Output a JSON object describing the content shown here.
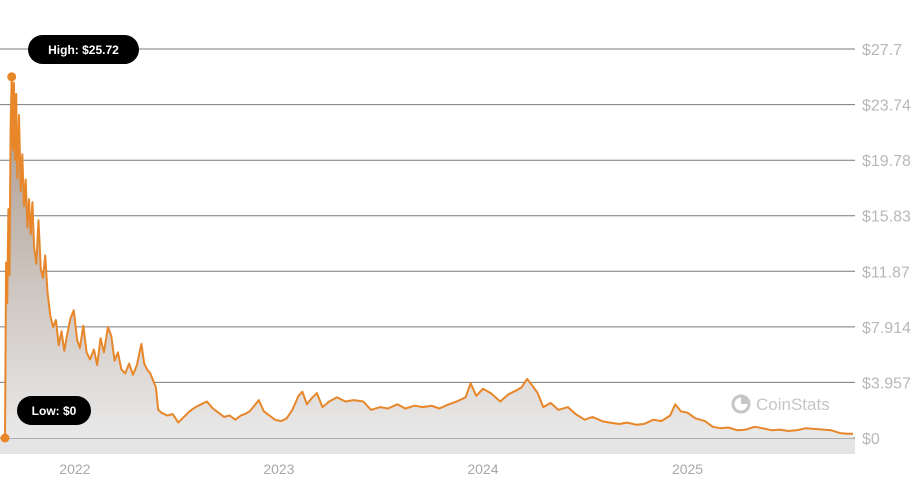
{
  "chart_data": {
    "type": "area",
    "title": "",
    "xlabel": "",
    "ylabel": "",
    "ylim": [
      0,
      27.7
    ],
    "xlim": [
      "2021-08-29",
      "2025-10-24"
    ],
    "grid": true,
    "y_ticks": [
      {
        "value": 27.7,
        "label": "$27.7"
      },
      {
        "value": 23.74,
        "label": "$23.74"
      },
      {
        "value": 19.78,
        "label": "$19.78"
      },
      {
        "value": 15.83,
        "label": "$15.83"
      },
      {
        "value": 11.87,
        "label": "$11.87"
      },
      {
        "value": 7.914,
        "label": "$7.914"
      },
      {
        "value": 3.957,
        "label": "$3.957"
      },
      {
        "value": 0,
        "label": "$0"
      }
    ],
    "x_ticks": [
      {
        "date": "2022-01-01",
        "label": "2022"
      },
      {
        "date": "2023-01-01",
        "label": "2023"
      },
      {
        "date": "2024-01-01",
        "label": "2024"
      },
      {
        "date": "2025-01-01",
        "label": "2025"
      }
    ],
    "colors": {
      "line": "#e8862a",
      "fill_top": "#a79486",
      "fill_bottom": "#e9e9e9",
      "grid": "#7a7a7a"
    },
    "high": {
      "label": "High: $25.72",
      "value": 25.72,
      "date": "2021-09-10"
    },
    "low": {
      "label": "Low: $0",
      "value": 0,
      "date": "2021-08-29"
    },
    "series": [
      {
        "points": [
          [
            "2021-08-29",
            0
          ],
          [
            "2021-08-31",
            12.5
          ],
          [
            "2021-09-02",
            9.6
          ],
          [
            "2021-09-04",
            16.3
          ],
          [
            "2021-09-06",
            11.6
          ],
          [
            "2021-09-08",
            22.0
          ],
          [
            "2021-09-10",
            25.72
          ],
          [
            "2021-09-12",
            20.5
          ],
          [
            "2021-09-14",
            25.3
          ],
          [
            "2021-09-16",
            19.8
          ],
          [
            "2021-09-18",
            24.5
          ],
          [
            "2021-09-20",
            18.5
          ],
          [
            "2021-09-23",
            23.0
          ],
          [
            "2021-09-26",
            17.6
          ],
          [
            "2021-09-29",
            20.2
          ],
          [
            "2021-10-02",
            16.5
          ],
          [
            "2021-10-05",
            18.4
          ],
          [
            "2021-10-08",
            15.0
          ],
          [
            "2021-10-11",
            17.0
          ],
          [
            "2021-10-14",
            14.5
          ],
          [
            "2021-10-17",
            16.8
          ],
          [
            "2021-10-20",
            13.6
          ],
          [
            "2021-10-24",
            12.4
          ],
          [
            "2021-10-28",
            15.5
          ],
          [
            "2021-11-01",
            12.0
          ],
          [
            "2021-11-05",
            11.4
          ],
          [
            "2021-11-09",
            13.0
          ],
          [
            "2021-11-13",
            10.4
          ],
          [
            "2021-11-18",
            8.7
          ],
          [
            "2021-11-23",
            7.9
          ],
          [
            "2021-11-28",
            8.4
          ],
          [
            "2021-12-03",
            6.6
          ],
          [
            "2021-12-08",
            7.6
          ],
          [
            "2021-12-13",
            6.2
          ],
          [
            "2021-12-18",
            7.3
          ],
          [
            "2021-12-24",
            8.5
          ],
          [
            "2021-12-30",
            9.1
          ],
          [
            "2022-01-05",
            7.0
          ],
          [
            "2022-01-10",
            6.4
          ],
          [
            "2022-01-16",
            8.0
          ],
          [
            "2022-01-22",
            6.1
          ],
          [
            "2022-01-28",
            5.6
          ],
          [
            "2022-02-04",
            6.3
          ],
          [
            "2022-02-10",
            5.2
          ],
          [
            "2022-02-16",
            7.1
          ],
          [
            "2022-02-22",
            6.1
          ],
          [
            "2022-03-01",
            7.9
          ],
          [
            "2022-03-07",
            7.3
          ],
          [
            "2022-03-13",
            5.5
          ],
          [
            "2022-03-19",
            6.1
          ],
          [
            "2022-03-25",
            4.9
          ],
          [
            "2022-04-01",
            4.6
          ],
          [
            "2022-04-08",
            5.3
          ],
          [
            "2022-04-15",
            4.5
          ],
          [
            "2022-04-22",
            5.2
          ],
          [
            "2022-04-30",
            6.7
          ],
          [
            "2022-05-05",
            5.3
          ],
          [
            "2022-05-10",
            4.9
          ],
          [
            "2022-05-16",
            4.6
          ],
          [
            "2022-05-22",
            4.0
          ],
          [
            "2022-05-26",
            3.6
          ],
          [
            "2022-05-30",
            2.0
          ],
          [
            "2022-06-05",
            1.8
          ],
          [
            "2022-06-15",
            1.6
          ],
          [
            "2022-06-25",
            1.7
          ],
          [
            "2022-07-05",
            1.1
          ],
          [
            "2022-07-15",
            1.5
          ],
          [
            "2022-07-25",
            1.9
          ],
          [
            "2022-08-05",
            2.2
          ],
          [
            "2022-08-15",
            2.4
          ],
          [
            "2022-08-25",
            2.6
          ],
          [
            "2022-09-05",
            2.1
          ],
          [
            "2022-09-15",
            1.8
          ],
          [
            "2022-09-25",
            1.5
          ],
          [
            "2022-10-05",
            1.6
          ],
          [
            "2022-10-15",
            1.3
          ],
          [
            "2022-10-25",
            1.6
          ],
          [
            "2022-11-01",
            1.7
          ],
          [
            "2022-11-10",
            1.9
          ],
          [
            "2022-11-18",
            2.3
          ],
          [
            "2022-11-26",
            2.7
          ],
          [
            "2022-12-05",
            1.9
          ],
          [
            "2022-12-15",
            1.6
          ],
          [
            "2022-12-25",
            1.3
          ],
          [
            "2023-01-05",
            1.2
          ],
          [
            "2023-01-15",
            1.4
          ],
          [
            "2023-01-25",
            2.0
          ],
          [
            "2023-02-05",
            3.0
          ],
          [
            "2023-02-12",
            3.3
          ],
          [
            "2023-02-20",
            2.4
          ],
          [
            "2023-02-28",
            2.8
          ],
          [
            "2023-03-10",
            3.2
          ],
          [
            "2023-03-20",
            2.2
          ],
          [
            "2023-04-01",
            2.6
          ],
          [
            "2023-04-15",
            2.9
          ],
          [
            "2023-04-30",
            2.6
          ],
          [
            "2023-05-15",
            2.7
          ],
          [
            "2023-06-01",
            2.6
          ],
          [
            "2023-06-15",
            2.0
          ],
          [
            "2023-07-01",
            2.2
          ],
          [
            "2023-07-15",
            2.1
          ],
          [
            "2023-08-01",
            2.4
          ],
          [
            "2023-08-15",
            2.1
          ],
          [
            "2023-09-01",
            2.3
          ],
          [
            "2023-09-15",
            2.2
          ],
          [
            "2023-10-01",
            2.3
          ],
          [
            "2023-10-15",
            2.1
          ],
          [
            "2023-11-01",
            2.4
          ],
          [
            "2023-11-15",
            2.6
          ],
          [
            "2023-12-01",
            2.9
          ],
          [
            "2023-12-10",
            3.9
          ],
          [
            "2023-12-20",
            3.0
          ],
          [
            "2024-01-01",
            3.5
          ],
          [
            "2024-01-15",
            3.2
          ],
          [
            "2024-02-01",
            2.6
          ],
          [
            "2024-02-15",
            3.1
          ],
          [
            "2024-03-01",
            3.4
          ],
          [
            "2024-03-10",
            3.6
          ],
          [
            "2024-03-20",
            4.2
          ],
          [
            "2024-03-28",
            3.8
          ],
          [
            "2024-04-08",
            3.2
          ],
          [
            "2024-04-18",
            2.2
          ],
          [
            "2024-05-01",
            2.5
          ],
          [
            "2024-05-15",
            2.0
          ],
          [
            "2024-06-01",
            2.2
          ],
          [
            "2024-06-15",
            1.7
          ],
          [
            "2024-07-01",
            1.3
          ],
          [
            "2024-07-15",
            1.5
          ],
          [
            "2024-08-01",
            1.2
          ],
          [
            "2024-08-15",
            1.1
          ],
          [
            "2024-09-01",
            1.0
          ],
          [
            "2024-09-15",
            1.1
          ],
          [
            "2024-10-01",
            0.95
          ],
          [
            "2024-10-15",
            1.0
          ],
          [
            "2024-11-01",
            1.3
          ],
          [
            "2024-11-15",
            1.2
          ],
          [
            "2024-12-01",
            1.6
          ],
          [
            "2024-12-10",
            2.4
          ],
          [
            "2024-12-20",
            1.9
          ],
          [
            "2025-01-01",
            1.8
          ],
          [
            "2025-01-15",
            1.4
          ],
          [
            "2025-02-01",
            1.2
          ],
          [
            "2025-02-15",
            0.8
          ],
          [
            "2025-03-01",
            0.7
          ],
          [
            "2025-03-15",
            0.75
          ],
          [
            "2025-04-01",
            0.55
          ],
          [
            "2025-04-15",
            0.6
          ],
          [
            "2025-05-01",
            0.8
          ],
          [
            "2025-05-15",
            0.7
          ],
          [
            "2025-06-01",
            0.55
          ],
          [
            "2025-06-15",
            0.6
          ],
          [
            "2025-07-01",
            0.5
          ],
          [
            "2025-07-15",
            0.55
          ],
          [
            "2025-08-01",
            0.7
          ],
          [
            "2025-08-15",
            0.65
          ],
          [
            "2025-09-01",
            0.6
          ],
          [
            "2025-09-15",
            0.55
          ],
          [
            "2025-10-01",
            0.35
          ],
          [
            "2025-10-15",
            0.3
          ],
          [
            "2025-10-24",
            0.3
          ]
        ]
      }
    ]
  },
  "watermark": {
    "name": "CoinStats",
    "icon": "coinstats-logo-icon"
  }
}
